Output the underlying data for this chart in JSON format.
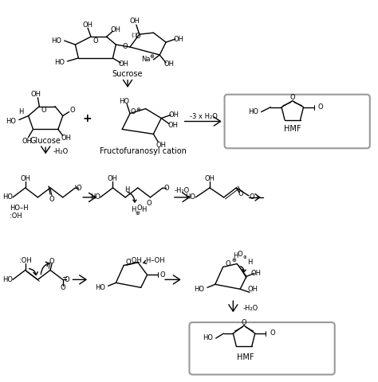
{
  "bg_color": "#ffffff",
  "figsize": [
    4.74,
    4.8
  ],
  "dpi": 100,
  "labels": {
    "sucrose": "Sucrose",
    "glucose": "Glucose",
    "fructo": "Fructofuranosyl cation",
    "hmf": "HMF",
    "minus3h2o": "-3 x H₂O",
    "minush2o": "-H₂O",
    "na": "Na"
  },
  "lw": 1.0,
  "fs": 7.0,
  "fs_small": 6.0
}
